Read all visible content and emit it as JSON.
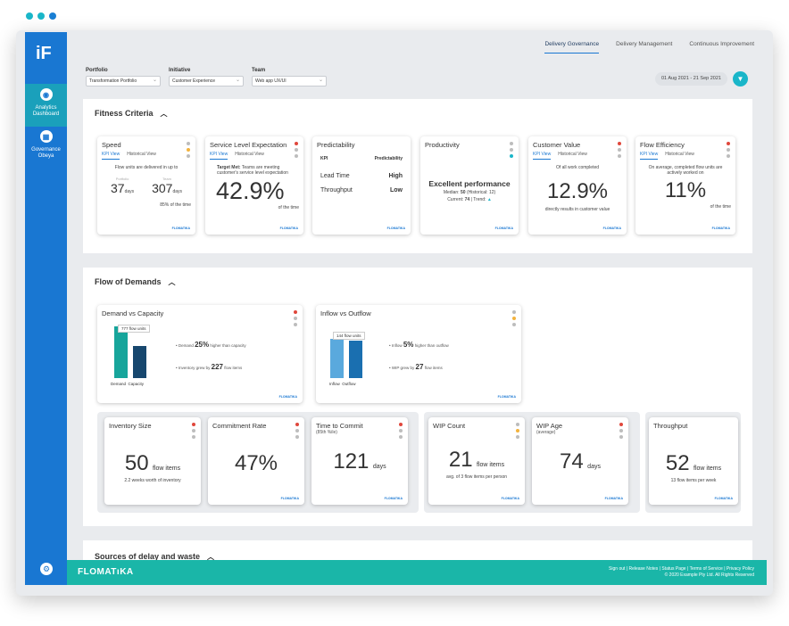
{
  "brand": {
    "logo": "iF",
    "footer_logo": "FLOMATıKA",
    "card_brand": "FLOMATIKA"
  },
  "nav": [
    {
      "label": "Analytics Dashboard",
      "icon": "dashboard-icon"
    },
    {
      "label": "Governance Obeya",
      "icon": "obeya-icon"
    }
  ],
  "top_tabs": [
    "Delivery Governance",
    "Delivery Management",
    "Continuous Improvement"
  ],
  "filters": {
    "portfolio_label": "Portfolio",
    "portfolio": "Transformation Portfolio",
    "initiative_label": "Initiative",
    "initiative": "Customer Experience",
    "team_label": "Team",
    "team": "Web app UX/UI",
    "date_range": "01 Aug 2021 - 21 Sep 2021"
  },
  "fitness": {
    "title": "Fitness Criteria",
    "speed": {
      "title": "Speed",
      "tab1": "KPI View",
      "tab2": "Historical View",
      "desc": "Flow units are delivered in up to",
      "label1": "Portfolio",
      "v1": "37",
      "u1": "days",
      "label2": "Team",
      "v2": "307",
      "u2": "days",
      "foot": "85% of the time"
    },
    "sle": {
      "title": "Service Level Expectation",
      "tab1": "KPI View",
      "tab2": "Historical View",
      "target_label": "Target Met:",
      "desc": "Teams are meeting customer's service level expectation",
      "value": "42.9%",
      "foot": "of the time"
    },
    "pred": {
      "title": "Predictability",
      "h1": "KPI",
      "h2": "Predictability",
      "r1k": "Lead Time",
      "r1v": "High",
      "r2k": "Throughput",
      "r2v": "Low"
    },
    "prod": {
      "title": "Productivity",
      "headline": "Excellent performance",
      "median_label": "Median:",
      "median": "50",
      "hist": "(Historical: 12)",
      "current_label": "Current:",
      "current": "74",
      "trend_label": "| Trend:"
    },
    "cv": {
      "title": "Customer Value",
      "tab1": "KPI View",
      "tab2": "Historical View",
      "desc": "Of all work completed",
      "value": "12.9%",
      "foot": "directly results in customer value"
    },
    "fe": {
      "title": "Flow Efficiency",
      "tab1": "KPI View",
      "tab2": "Historical View",
      "desc": "On average, completed flow units are actively worked on",
      "value": "11%",
      "foot": "of the time"
    }
  },
  "flow": {
    "title": "Flow of Demands",
    "dvc": {
      "title": "Demand vs Capacity",
      "tooltip": "777 flow units",
      "l1": "Demand",
      "l2": "Capacity",
      "t1a": "Demand",
      "t1b": "25%",
      "t1c": "higher than capacity",
      "t2a": "Inventory grew by",
      "t2b": "227",
      "t2c": "flow items"
    },
    "io": {
      "title": "Inflow vs Outflow",
      "tooltip": "144 flow units",
      "l1": "Inflow",
      "l2": "Outflow",
      "t1a": "Inflow",
      "t1b": "5%",
      "t1c": "higher than outflow",
      "t2a": "WIP grew by",
      "t2b": "27",
      "t2c": "flow items"
    },
    "inv": {
      "title": "Inventory Size",
      "value": "50",
      "unit": "flow items",
      "foot": "2.2 weeks worth of inventory"
    },
    "cr": {
      "title": "Commitment Rate",
      "value": "47%"
    },
    "ttc": {
      "title": "Time to Commit",
      "sub": "(85th %ile)",
      "value": "121",
      "unit": "days"
    },
    "wc": {
      "title": "WIP Count",
      "value": "21",
      "unit": "flow items",
      "foot": "avg. of 3 flow items per person"
    },
    "wa": {
      "title": "WIP Age",
      "sub": "(average)",
      "value": "74",
      "unit": "days"
    },
    "tp": {
      "title": "Throughput",
      "value": "52",
      "unit": "flow items",
      "foot": "13 flow items per week"
    }
  },
  "sources": {
    "title": "Sources of delay and waste"
  },
  "footer": {
    "links": "Sign out  |  Release Notes  |  Status Page  |  Terms of Service  |  Privacy Policy",
    "copy": "© 2020 Example Pty Ltd. All Rights Reserved"
  }
}
